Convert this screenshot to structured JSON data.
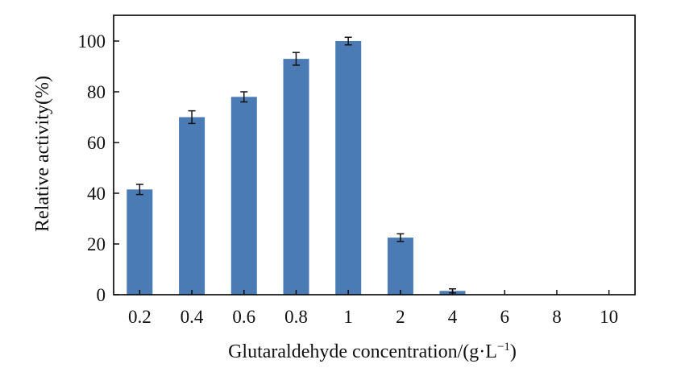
{
  "chart_data": {
    "type": "bar",
    "title": "",
    "xlabel": "Glutaraldehyde concentration/(g·L",
    "xlabel_sup": "−1",
    "xlabel_close": ")",
    "ylabel": "Relative activity(%)",
    "categories": [
      "0.2",
      "0.4",
      "0.6",
      "0.8",
      "1",
      "2",
      "4",
      "6",
      "8",
      "10"
    ],
    "values": [
      41.5,
      70,
      78,
      93,
      100,
      22.5,
      1.5,
      0,
      0,
      0
    ],
    "errors": [
      2.0,
      2.5,
      2.0,
      2.5,
      1.5,
      1.5,
      0.8,
      0,
      0,
      0
    ],
    "ylim": [
      0,
      100
    ],
    "yticks": [
      0,
      20,
      40,
      60,
      80,
      100
    ],
    "ytick_labels": [
      "0",
      "20",
      "40",
      "60",
      "80",
      "100"
    ],
    "grid": false,
    "legend": "none",
    "bar_color": "#4a7bb5"
  }
}
